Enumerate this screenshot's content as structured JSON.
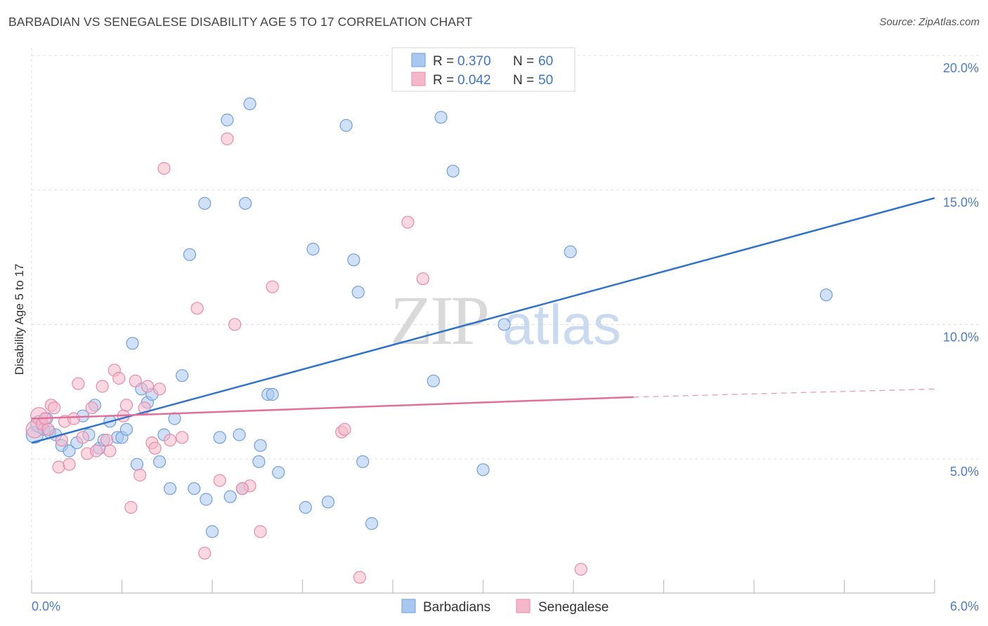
{
  "header": {
    "title": "BARBADIAN VS SENEGALESE DISABILITY AGE 5 TO 17 CORRELATION CHART",
    "source": "Source: ZipAtlas.com"
  },
  "watermark": {
    "zip": "ZIP",
    "atlas": "atlas"
  },
  "legend": {
    "rows": [
      {
        "r_label": "R = ",
        "r_value": "0.370",
        "n_label": "N = ",
        "n_value": "60",
        "color": "#a9c8f0"
      },
      {
        "r_label": "R = ",
        "r_value": "0.042",
        "n_label": "N = ",
        "n_value": "50",
        "color": "#f5b8cb"
      }
    ]
  },
  "bottom_legend": {
    "items": [
      "Barbadians",
      "Senegalese"
    ]
  },
  "colors": {
    "blue_fill": "#a9c8f0",
    "blue_stroke": "#6f9fdc",
    "blue_line": "#2f72c9",
    "pink_fill": "#f5b8cb",
    "pink_stroke": "#e88aa8",
    "pink_line": "#e0709a",
    "grid": "#dcdcdc",
    "tick_label": "#4a7cc7"
  },
  "chart_data": {
    "type": "scatter",
    "title": "BARBADIAN VS SENEGALESE DISABILITY AGE 5 TO 17 CORRELATION CHART",
    "xlabel": "",
    "ylabel": "Disability Age 5 to 17",
    "xlim": [
      0,
      6
    ],
    "ylim": [
      0,
      20.5
    ],
    "x_tick_labels": [
      "0.0%",
      "6.0%"
    ],
    "y_ticks": [
      5,
      10,
      15,
      20
    ],
    "y_tick_labels": [
      "5.0%",
      "10.0%",
      "15.0%",
      "20.0%"
    ],
    "grid": true,
    "legend_position": "top-center",
    "series": [
      {
        "name": "Barbadians",
        "color": "#a9c8f0",
        "r": 0.37,
        "n": 60,
        "trend": {
          "x": [
            0,
            6
          ],
          "y": [
            5.6,
            14.7
          ],
          "style": "solid"
        },
        "points": [
          [
            0.02,
            5.9
          ],
          [
            0.05,
            6.3
          ],
          [
            0.08,
            6.1
          ],
          [
            0.1,
            6.5
          ],
          [
            0.12,
            6.0
          ],
          [
            0.16,
            5.9
          ],
          [
            0.2,
            5.5
          ],
          [
            0.25,
            5.3
          ],
          [
            0.3,
            5.6
          ],
          [
            0.34,
            6.6
          ],
          [
            0.38,
            5.9
          ],
          [
            0.42,
            7.0
          ],
          [
            0.45,
            5.4
          ],
          [
            0.48,
            5.7
          ],
          [
            0.52,
            6.4
          ],
          [
            0.57,
            5.8
          ],
          [
            0.6,
            5.8
          ],
          [
            0.63,
            6.1
          ],
          [
            0.67,
            9.3
          ],
          [
            0.7,
            4.8
          ],
          [
            0.73,
            7.6
          ],
          [
            0.77,
            7.1
          ],
          [
            0.8,
            7.4
          ],
          [
            0.85,
            4.9
          ],
          [
            0.88,
            5.9
          ],
          [
            0.92,
            3.9
          ],
          [
            0.95,
            6.5
          ],
          [
            1.0,
            8.1
          ],
          [
            1.05,
            12.6
          ],
          [
            1.08,
            3.9
          ],
          [
            1.15,
            14.5
          ],
          [
            1.16,
            3.5
          ],
          [
            1.2,
            2.3
          ],
          [
            1.25,
            5.8
          ],
          [
            1.3,
            17.6
          ],
          [
            1.32,
            3.6
          ],
          [
            1.38,
            5.9
          ],
          [
            1.4,
            3.9
          ],
          [
            1.42,
            14.5
          ],
          [
            1.45,
            18.2
          ],
          [
            1.51,
            4.9
          ],
          [
            1.52,
            5.5
          ],
          [
            1.57,
            7.4
          ],
          [
            1.6,
            7.4
          ],
          [
            1.64,
            4.5
          ],
          [
            1.82,
            3.2
          ],
          [
            1.87,
            12.8
          ],
          [
            1.97,
            3.4
          ],
          [
            2.09,
            17.4
          ],
          [
            2.14,
            12.4
          ],
          [
            2.17,
            11.2
          ],
          [
            2.2,
            4.9
          ],
          [
            2.26,
            2.6
          ],
          [
            2.67,
            7.9
          ],
          [
            2.72,
            17.7
          ],
          [
            2.8,
            15.7
          ],
          [
            3.0,
            4.6
          ],
          [
            3.14,
            10.0
          ],
          [
            3.58,
            12.7
          ],
          [
            5.28,
            11.1
          ]
        ]
      },
      {
        "name": "Senegalese",
        "color": "#f5b8cb",
        "r": 0.042,
        "n": 50,
        "trend": {
          "x": [
            0,
            4.0
          ],
          "y": [
            6.5,
            7.3
          ],
          "style": "solid",
          "dashed_to": [
            6,
            7.6
          ]
        },
        "points": [
          [
            0.02,
            6.1
          ],
          [
            0.05,
            6.6
          ],
          [
            0.07,
            6.3
          ],
          [
            0.09,
            6.5
          ],
          [
            0.11,
            6.1
          ],
          [
            0.13,
            7.0
          ],
          [
            0.15,
            6.9
          ],
          [
            0.18,
            4.7
          ],
          [
            0.2,
            5.7
          ],
          [
            0.22,
            6.4
          ],
          [
            0.25,
            4.8
          ],
          [
            0.28,
            6.5
          ],
          [
            0.31,
            7.8
          ],
          [
            0.34,
            5.8
          ],
          [
            0.37,
            5.2
          ],
          [
            0.4,
            6.9
          ],
          [
            0.43,
            5.3
          ],
          [
            0.47,
            7.7
          ],
          [
            0.5,
            5.7
          ],
          [
            0.52,
            5.3
          ],
          [
            0.55,
            8.3
          ],
          [
            0.58,
            8.0
          ],
          [
            0.61,
            6.6
          ],
          [
            0.63,
            7.0
          ],
          [
            0.66,
            3.2
          ],
          [
            0.69,
            7.9
          ],
          [
            0.72,
            4.4
          ],
          [
            0.75,
            6.9
          ],
          [
            0.77,
            7.7
          ],
          [
            0.8,
            5.6
          ],
          [
            0.82,
            5.4
          ],
          [
            0.85,
            7.6
          ],
          [
            0.88,
            15.8
          ],
          [
            0.92,
            5.7
          ],
          [
            1.0,
            5.8
          ],
          [
            1.1,
            10.6
          ],
          [
            1.15,
            1.5
          ],
          [
            1.25,
            4.2
          ],
          [
            1.3,
            16.9
          ],
          [
            1.35,
            10.0
          ],
          [
            1.45,
            4.0
          ],
          [
            1.52,
            2.3
          ],
          [
            1.6,
            11.4
          ],
          [
            2.06,
            6.0
          ],
          [
            2.08,
            6.1
          ],
          [
            2.18,
            0.6
          ],
          [
            2.5,
            13.8
          ],
          [
            2.6,
            11.7
          ],
          [
            3.65,
            0.9
          ],
          [
            1.4,
            3.9
          ]
        ]
      }
    ]
  }
}
